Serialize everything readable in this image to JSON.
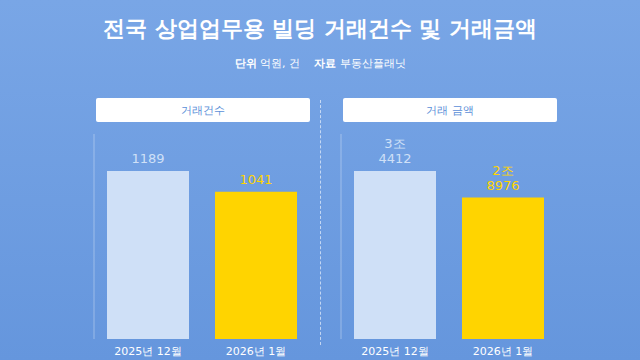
{
  "title": "전국 상업업무용 빌딩 거래건수 및 거래금액",
  "notes": [
    {
      "label": "단위",
      "text": "억원, 건"
    },
    {
      "label": "자료",
      "text": "부동산플래닛"
    }
  ],
  "chart_data": [
    {
      "type": "bar",
      "title": "거래건수",
      "categories": [
        "2025년 12월",
        "2026년 1월"
      ],
      "values": [
        1189,
        1041
      ],
      "colors": [
        "#cfe0f7",
        "#ffd400"
      ],
      "ylim": [
        0,
        1450
      ],
      "data_labels": true,
      "tick_labels": "x",
      "grid": false
    },
    {
      "type": "bar",
      "title": "거래 금액",
      "categories": [
        "2025년 12월",
        "2026년 1월"
      ],
      "values": [
        34412,
        28976
      ],
      "value_labels": [
        "3조 4412",
        "2조 8976"
      ],
      "colors": [
        "#cfe0f7",
        "#ffd400"
      ],
      "ylim": [
        0,
        42000
      ],
      "data_labels": true,
      "tick_labels": "x",
      "grid": false
    }
  ]
}
